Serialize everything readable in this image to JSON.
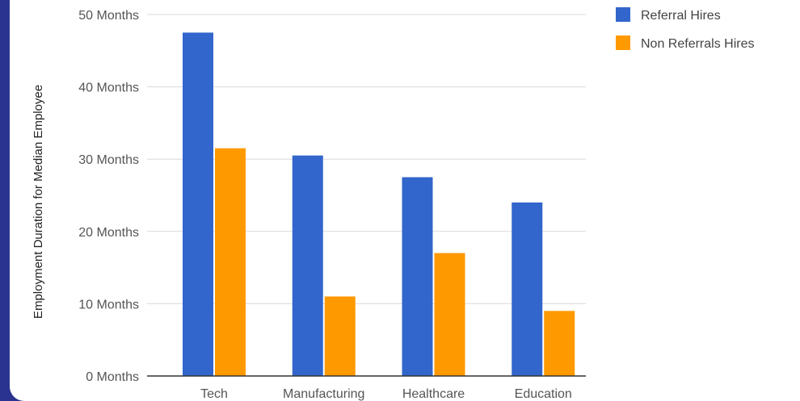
{
  "chart_data": {
    "type": "bar",
    "title": "",
    "xlabel": "",
    "ylabel": "Employment Duration for Median Employee",
    "categories": [
      "Tech",
      "Manufacturing",
      "Healthcare",
      "Education"
    ],
    "series": [
      {
        "name": "Referral Hires",
        "color": "#3366cc",
        "values": [
          47.5,
          30.5,
          27.5,
          24
        ]
      },
      {
        "name": "Non Referrals Hires",
        "color": "#ff9900",
        "values": [
          31.5,
          11,
          17,
          9
        ]
      }
    ],
    "ylim": [
      0,
      50
    ],
    "yticks": [
      0,
      10,
      20,
      30,
      40,
      50
    ],
    "ytick_labels": [
      "0 Months",
      "10 Months",
      "20 Months",
      "30 Months",
      "40 Months",
      "50 Months"
    ],
    "grid": true,
    "legend_position": "right"
  }
}
